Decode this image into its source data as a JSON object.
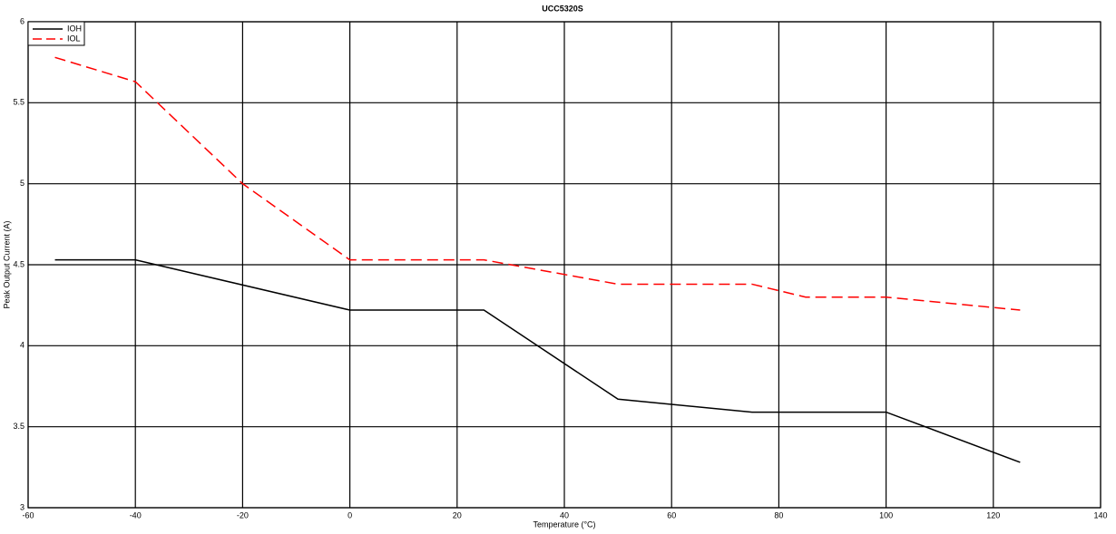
{
  "chart_data": {
    "type": "line",
    "title": "UCC5320S",
    "x_label": "Temperature (°C)",
    "y_label": "Peak Output Current (A)",
    "series": [
      {
        "name": "IOH",
        "color": "#000000",
        "dash": "solid",
        "x": [
          -55,
          -40,
          0,
          25,
          50,
          75,
          100,
          125
        ],
        "values": [
          4.53,
          4.53,
          4.22,
          4.22,
          3.67,
          3.59,
          3.59,
          3.28
        ]
      },
      {
        "name": "IOL",
        "color": "#ff0000",
        "dash": "dashed",
        "x": [
          -55,
          -40,
          -20,
          0,
          25,
          50,
          75,
          85,
          100,
          125
        ],
        "values": [
          5.78,
          5.63,
          5.0,
          4.53,
          4.53,
          4.38,
          4.38,
          4.3,
          4.3,
          4.22
        ]
      }
    ],
    "xlim": [
      -60,
      140
    ],
    "xticks": [
      -60,
      -40,
      -20,
      0,
      20,
      40,
      60,
      80,
      100,
      120,
      140
    ],
    "ylim": [
      3,
      6
    ],
    "yticks": [
      3,
      3.5,
      4,
      4.5,
      5,
      5.5,
      6
    ],
    "grid": true,
    "legend": "upper-left"
  }
}
